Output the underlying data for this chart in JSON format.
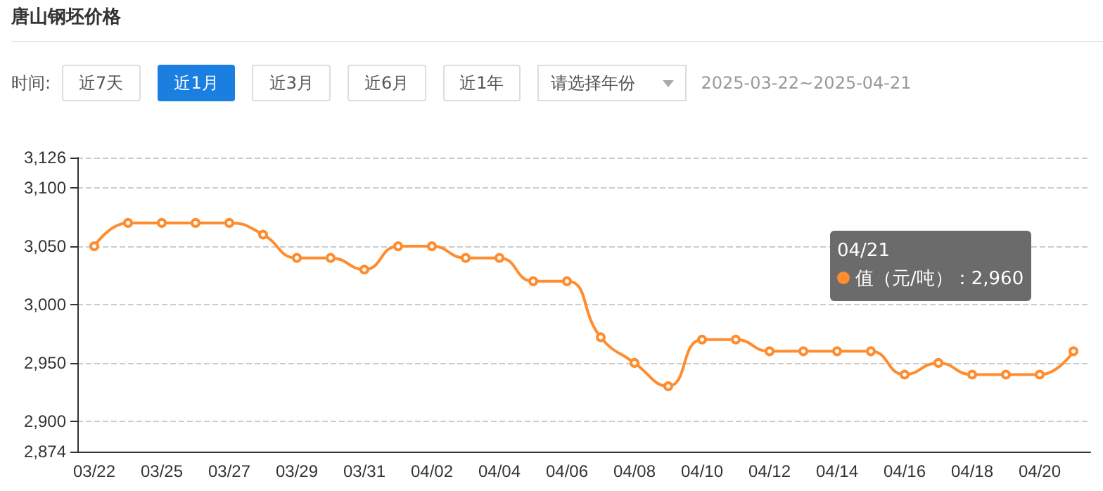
{
  "chart_data": {
    "type": "line",
    "title": "唐山钢坯价格",
    "annotations": [
      "时间:",
      "近7天",
      "近1月",
      "近3月",
      "近6月",
      "近1年",
      "请选择年份",
      "2025-03-22~2025-04-21",
      "04/21",
      "值（元/吨）：2,960"
    ],
    "categories": [
      "03/22",
      null,
      "03/25",
      null,
      "03/27",
      null,
      "03/29",
      null,
      "03/31",
      null,
      "04/02",
      null,
      "04/04",
      null,
      "04/06",
      null,
      "04/08",
      null,
      "04/10",
      null,
      "04/12",
      null,
      "04/14",
      null,
      "04/16",
      null,
      "04/18",
      null,
      "04/20",
      null
    ],
    "series": [
      {
        "color": "#ff8c2e",
        "values": [
          3050,
          3070,
          3070,
          3070,
          3070,
          3060,
          3040,
          3040,
          3030,
          3050,
          3050,
          3040,
          3040,
          3020,
          3020,
          2972,
          2950,
          2930,
          2970,
          2970,
          2960,
          2960,
          2960,
          2960,
          2940,
          2950,
          2940,
          2940,
          2940,
          2960
        ]
      }
    ],
    "ylim": [
      2874,
      3126
    ],
    "yticks": [
      {
        "value": 2874,
        "label": "2,874"
      },
      {
        "value": 2900,
        "label": "2,900"
      },
      {
        "value": 2950,
        "label": "2,950"
      },
      {
        "value": 3000,
        "label": "3,000"
      },
      {
        "value": 3050,
        "label": "3,050"
      },
      {
        "value": 3100,
        "label": "3,100"
      },
      {
        "value": 3126,
        "label": "3,126"
      }
    ],
    "grid": "y",
    "marker": "circle",
    "line_style": "solid"
  }
}
